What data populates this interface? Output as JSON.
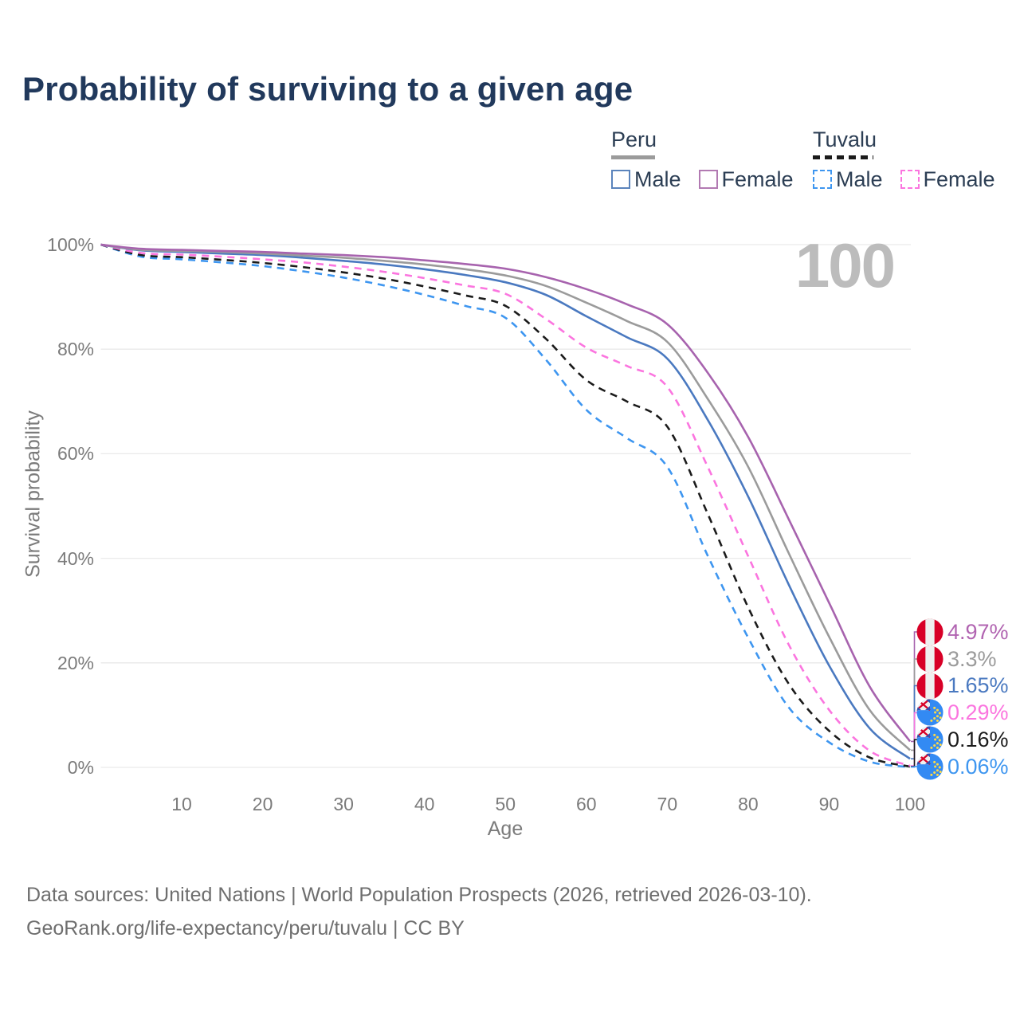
{
  "header": {
    "title": "Probability of surviving to a given age"
  },
  "legend": {
    "groups": [
      {
        "label": "Peru",
        "underline_color": "#9b9b9b",
        "underline_style": "solid",
        "items": [
          {
            "label": "Male",
            "color": "#5b84bc",
            "style": "solid"
          },
          {
            "label": "Female",
            "color": "#b27ab2",
            "style": "solid"
          }
        ]
      },
      {
        "label": "Tuvalu",
        "underline_color": "#1b1b1b",
        "underline_style": "dashed",
        "items": [
          {
            "label": "Male",
            "color": "#3e96f0",
            "style": "dashed"
          },
          {
            "label": "Female",
            "color": "#fb75df",
            "style": "dashed"
          }
        ]
      }
    ]
  },
  "chart_data": {
    "type": "line",
    "title": "Probability of surviving to a given age",
    "xlabel": "Age",
    "ylabel": "Survival probability",
    "xlim": [
      0,
      100
    ],
    "ylim": [
      0,
      100
    ],
    "grid": "horizontal",
    "legend_position": "top-right",
    "annotation": {
      "text": "100"
    },
    "x_ticks": [
      10,
      20,
      30,
      40,
      50,
      60,
      70,
      80,
      90,
      100
    ],
    "y_ticks": [
      "0%",
      "20%",
      "40%",
      "60%",
      "80%",
      "100%"
    ],
    "x": [
      0,
      5,
      10,
      15,
      20,
      25,
      30,
      35,
      40,
      45,
      50,
      55,
      60,
      65,
      70,
      75,
      80,
      85,
      90,
      95,
      100
    ],
    "series": [
      {
        "name": "Peru Female",
        "country": "Peru",
        "sex": "female",
        "style": "solid",
        "color": "#a763ae",
        "label_color": "#b164b1",
        "flag": "peru",
        "end_label": "4.97%",
        "values": [
          100,
          99.2,
          99.0,
          98.8,
          98.6,
          98.3,
          98.0,
          97.6,
          97.0,
          96.3,
          95.4,
          93.8,
          91.5,
          88.6,
          84.8,
          75.5,
          63.2,
          47.5,
          31.5,
          15.5,
          4.97
        ]
      },
      {
        "name": "Peru",
        "country": "Peru",
        "sex": "both",
        "style": "solid",
        "color": "#9b9b9b",
        "label_color": "#9b9b9b",
        "flag": "peru",
        "end_label": "3.3%",
        "values": [
          100,
          99.0,
          98.8,
          98.6,
          98.3,
          97.9,
          97.5,
          96.9,
          96.2,
          95.3,
          94.1,
          92.1,
          88.9,
          85.4,
          81.4,
          70.5,
          57.5,
          41.0,
          25.0,
          11.0,
          3.3
        ]
      },
      {
        "name": "Peru Male",
        "country": "Peru",
        "sex": "male",
        "style": "solid",
        "color": "#4a79c0",
        "label_color": "#4a79c0",
        "flag": "peru",
        "end_label": "1.65%",
        "values": [
          100,
          98.9,
          98.6,
          98.3,
          98.0,
          97.5,
          96.9,
          96.2,
          95.3,
          94.2,
          92.8,
          90.4,
          86.3,
          82.3,
          78.2,
          66.5,
          51.8,
          35.0,
          19.5,
          7.5,
          1.65
        ]
      },
      {
        "name": "Tuvalu Female",
        "country": "Tuvalu",
        "sex": "female",
        "style": "dashed",
        "color": "#fb75df",
        "label_color": "#fb75df",
        "flag": "tuvalu",
        "end_label": "0.29%",
        "values": [
          100,
          98.4,
          98.1,
          97.7,
          97.2,
          96.6,
          95.8,
          94.8,
          93.6,
          92.2,
          90.6,
          85.8,
          80.3,
          76.8,
          72.8,
          57.5,
          40.4,
          23.5,
          11.0,
          3.2,
          0.29
        ]
      },
      {
        "name": "Tuvalu",
        "country": "Tuvalu",
        "sex": "both",
        "style": "dashed",
        "color": "#1b1b1b",
        "label_color": "#1b1b1b",
        "flag": "tuvalu",
        "end_label": "0.16%",
        "values": [
          100,
          98.0,
          97.6,
          97.1,
          96.5,
          95.7,
          94.7,
          93.5,
          92.0,
          90.3,
          88.3,
          82.0,
          74.1,
          70.0,
          65.2,
          48.5,
          30.6,
          16.0,
          7.0,
          1.9,
          0.16
        ]
      },
      {
        "name": "Tuvalu Male",
        "country": "Tuvalu",
        "sex": "male",
        "style": "dashed",
        "color": "#3e96f0",
        "label_color": "#3e96f0",
        "flag": "tuvalu",
        "end_label": "0.06%",
        "values": [
          100,
          97.7,
          97.2,
          96.6,
          95.9,
          94.9,
          93.7,
          92.2,
          90.4,
          88.3,
          86.0,
          78.0,
          68.4,
          63.0,
          57.5,
          40.5,
          24.8,
          11.5,
          4.8,
          1.1,
          0.06
        ]
      }
    ]
  },
  "footer": {
    "line1": "Data sources: United Nations | World Population Prospects (2026, retrieved 2026-03-10).",
    "line2": "GeoRank.org/life-expectancy/peru/tuvalu | CC BY"
  }
}
